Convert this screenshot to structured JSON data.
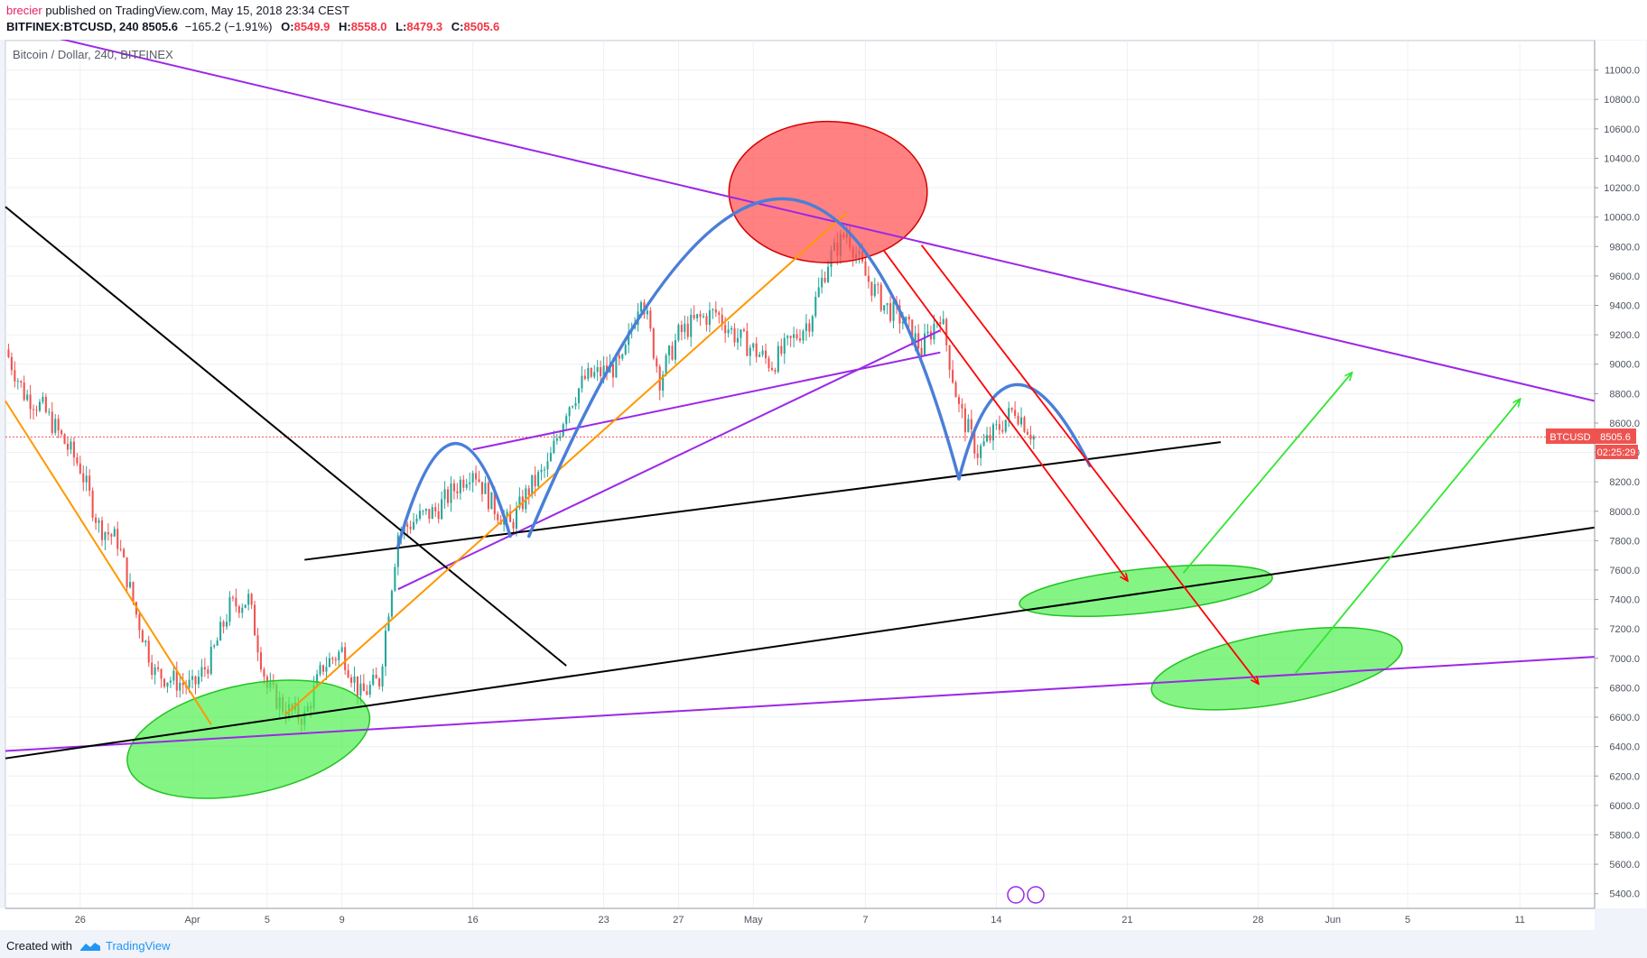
{
  "header": {
    "author": "brecier",
    "published": "published on TradingView.com, May 15, 2018 23:34 CEST",
    "symbol": "BITFINEX:BTCUSD, 240",
    "price": "8505.6",
    "change": "−165.2 (−1.91%)",
    "o_label": "O:",
    "o": "8549.9",
    "h_label": "H:",
    "h": "8558.0",
    "l_label": "L:",
    "l": "8479.3",
    "c_label": "C:",
    "c": "8505.6"
  },
  "footer": {
    "created_with": "Created with",
    "brand": "TradingView"
  },
  "colors": {
    "up": "#26a69a",
    "down": "#ef5350",
    "purple": "#9c27e8",
    "black": "#000000",
    "orange": "#ff9800",
    "blue": "#4a7fd8",
    "red": "#ff0000",
    "green": "#32e632",
    "price_tag": "#ef5350",
    "countdown_tag": "#ef5350"
  },
  "chart_data": {
    "type": "candlestick",
    "title": "Bitcoin / Dollar, 240, BITFINEX",
    "symbol": "BTCUSD",
    "interval": "240",
    "exchange": "BITFINEX",
    "last_price": "8505.6",
    "countdown": "02:25:29",
    "y_range": [
      5300,
      11200
    ],
    "y_ticks": [
      "5400.0",
      "5600.0",
      "5800.0",
      "6000.0",
      "6200.0",
      "6400.0",
      "6600.0",
      "6800.0",
      "7000.0",
      "7200.0",
      "7400.0",
      "7600.0",
      "7800.0",
      "8000.0",
      "8200.0",
      "8400.0",
      "8600.0",
      "8800.0",
      "9000.0",
      "9200.0",
      "9400.0",
      "9600.0",
      "9800.0",
      "10000.0",
      "10200.0",
      "10400.0",
      "10600.0",
      "10800.0",
      "11000.0"
    ],
    "x_range": [
      "2018-03-22",
      "2018-06-15"
    ],
    "x_ticks": [
      {
        "label": "26",
        "date": "2018-03-26"
      },
      {
        "label": "Apr",
        "date": "2018-04-01"
      },
      {
        "label": "5",
        "date": "2018-04-05"
      },
      {
        "label": "9",
        "date": "2018-04-09"
      },
      {
        "label": "16",
        "date": "2018-04-16"
      },
      {
        "label": "23",
        "date": "2018-04-23"
      },
      {
        "label": "27",
        "date": "2018-04-27"
      },
      {
        "label": "May",
        "date": "2018-05-01"
      },
      {
        "label": "7",
        "date": "2018-05-07"
      },
      {
        "label": "14",
        "date": "2018-05-14"
      },
      {
        "label": "21",
        "date": "2018-05-21"
      },
      {
        "label": "28",
        "date": "2018-05-28"
      },
      {
        "label": "Jun",
        "date": "2018-06-01"
      },
      {
        "label": "5",
        "date": "2018-06-05"
      },
      {
        "label": "11",
        "date": "2018-06-11"
      }
    ],
    "price_path": [
      {
        "date": "2018-03-22",
        "close": 9100
      },
      {
        "date": "2018-03-23",
        "close": 8800
      },
      {
        "date": "2018-03-24",
        "close": 8700
      },
      {
        "date": "2018-03-25",
        "close": 8500
      },
      {
        "date": "2018-03-26",
        "close": 8300
      },
      {
        "date": "2018-03-27",
        "close": 7900
      },
      {
        "date": "2018-03-28",
        "close": 7800
      },
      {
        "date": "2018-03-29",
        "close": 7300
      },
      {
        "date": "2018-03-30",
        "close": 6900
      },
      {
        "date": "2018-03-31",
        "close": 6850
      },
      {
        "date": "2018-04-01",
        "close": 6800
      },
      {
        "date": "2018-04-02",
        "close": 7000
      },
      {
        "date": "2018-04-03",
        "close": 7350
      },
      {
        "date": "2018-04-04",
        "close": 7400
      },
      {
        "date": "2018-04-05",
        "close": 6800
      },
      {
        "date": "2018-04-06",
        "close": 6650
      },
      {
        "date": "2018-04-07",
        "close": 6600
      },
      {
        "date": "2018-04-08",
        "close": 6950
      },
      {
        "date": "2018-04-09",
        "close": 7050
      },
      {
        "date": "2018-04-10",
        "close": 6750
      },
      {
        "date": "2018-04-11",
        "close": 6850
      },
      {
        "date": "2018-04-12",
        "close": 7850
      },
      {
        "date": "2018-04-13",
        "close": 7950
      },
      {
        "date": "2018-04-14",
        "close": 8000
      },
      {
        "date": "2018-04-15",
        "close": 8150
      },
      {
        "date": "2018-04-16",
        "close": 8300
      },
      {
        "date": "2018-04-17",
        "close": 8050
      },
      {
        "date": "2018-04-18",
        "close": 7900
      },
      {
        "date": "2018-04-19",
        "close": 8150
      },
      {
        "date": "2018-04-20",
        "close": 8300
      },
      {
        "date": "2018-04-21",
        "close": 8700
      },
      {
        "date": "2018-04-22",
        "close": 8900
      },
      {
        "date": "2018-04-23",
        "close": 8950
      },
      {
        "date": "2018-04-24",
        "close": 9000
      },
      {
        "date": "2018-04-25",
        "close": 9500
      },
      {
        "date": "2018-04-26",
        "close": 8900
      },
      {
        "date": "2018-04-27",
        "close": 9200
      },
      {
        "date": "2018-04-28",
        "close": 9300
      },
      {
        "date": "2018-04-29",
        "close": 9350
      },
      {
        "date": "2018-04-30",
        "close": 9200
      },
      {
        "date": "2018-05-01",
        "close": 9100
      },
      {
        "date": "2018-05-02",
        "close": 9000
      },
      {
        "date": "2018-05-03",
        "close": 9150
      },
      {
        "date": "2018-05-04",
        "close": 9300
      },
      {
        "date": "2018-05-05",
        "close": 9700
      },
      {
        "date": "2018-05-06",
        "close": 9900
      },
      {
        "date": "2018-05-07",
        "close": 9600
      },
      {
        "date": "2018-05-08",
        "close": 9400
      },
      {
        "date": "2018-05-09",
        "close": 9300
      },
      {
        "date": "2018-05-10",
        "close": 9100
      },
      {
        "date": "2018-05-11",
        "close": 9350
      },
      {
        "date": "2018-05-12",
        "close": 8700
      },
      {
        "date": "2018-05-13",
        "close": 8400
      },
      {
        "date": "2018-05-14",
        "close": 8550
      },
      {
        "date": "2018-05-15",
        "close": 8700
      },
      {
        "date": "2018-05-16",
        "close": 8505.6
      }
    ],
    "drawings": {
      "lines": [
        {
          "name": "purple-long-downtrend",
          "color": "purple",
          "from": {
            "date": "2018-03-22",
            "price": 11300
          },
          "to": {
            "date": "2018-06-15",
            "price": 8750
          }
        },
        {
          "name": "purple-lower-uptrend",
          "color": "purple",
          "from": {
            "date": "2018-03-22",
            "price": 6370
          },
          "to": {
            "date": "2018-06-15",
            "price": 7010
          }
        },
        {
          "name": "purple-channel-upper",
          "color": "purple",
          "from": {
            "date": "2018-04-16",
            "price": 8420
          },
          "to": {
            "date": "2018-05-11",
            "price": 9080
          }
        },
        {
          "name": "purple-channel-lower",
          "color": "purple",
          "from": {
            "date": "2018-04-12",
            "price": 7470
          },
          "to": {
            "date": "2018-05-11",
            "price": 9230
          }
        },
        {
          "name": "black-steep-downtrend",
          "color": "black",
          "from": {
            "date": "2018-03-22",
            "price": 10070
          },
          "to": {
            "date": "2018-04-21",
            "price": 6950
          }
        },
        {
          "name": "black-long-uptrend",
          "color": "black",
          "from": {
            "date": "2018-03-22",
            "price": 6320
          },
          "to": {
            "date": "2018-06-15",
            "price": 7890
          }
        },
        {
          "name": "black-neckline",
          "color": "black",
          "from": {
            "date": "2018-04-07",
            "price": 7670
          },
          "to": {
            "date": "2018-05-26",
            "price": 8470
          }
        },
        {
          "name": "orange-decline-channel",
          "color": "orange",
          "from": {
            "date": "2018-03-22",
            "price": 8750
          },
          "to": {
            "date": "2018-04-02",
            "price": 6550
          }
        },
        {
          "name": "orange-rally-line",
          "color": "orange",
          "from": {
            "date": "2018-04-06",
            "price": 6620
          },
          "to": {
            "date": "2018-05-06",
            "price": 10030
          }
        }
      ],
      "arrows": [
        {
          "name": "red-arrow-short",
          "color": "red",
          "from": {
            "date": "2018-05-08",
            "price": 9770
          },
          "to": {
            "date": "2018-05-21",
            "price": 7530
          }
        },
        {
          "name": "red-arrow-long",
          "color": "red",
          "from": {
            "date": "2018-05-10",
            "price": 9810
          },
          "to": {
            "date": "2018-05-28",
            "price": 6830
          }
        },
        {
          "name": "green-arrow-upper",
          "color": "green",
          "from": {
            "date": "2018-05-24",
            "price": 7580
          },
          "to": {
            "date": "2018-06-02",
            "price": 8940
          }
        },
        {
          "name": "green-arrow-lower",
          "color": "green",
          "from": {
            "date": "2018-05-30",
            "price": 6900
          },
          "to": {
            "date": "2018-06-11",
            "price": 8760
          }
        }
      ],
      "ellipses": [
        {
          "name": "red-top-ellipse",
          "color": "red",
          "center": {
            "date": "2018-05-05",
            "price": 10170
          },
          "radius_days": 5.3,
          "radius_price": 480
        },
        {
          "name": "green-ellipse-low",
          "color": "green",
          "center": {
            "date": "2018-04-04",
            "price": 6450
          },
          "radius_days": 6.6,
          "radius_price": 370,
          "rotate_deg": -12
        },
        {
          "name": "green-ellipse-mid",
          "color": "green",
          "center": {
            "date": "2018-05-22",
            "price": 7460
          },
          "radius_days": 6.8,
          "radius_price": 150,
          "rotate_deg": -6
        },
        {
          "name": "green-ellipse-right",
          "color": "green",
          "center": {
            "date": "2018-05-29",
            "price": 6930
          },
          "radius_days": 6.8,
          "radius_price": 240,
          "rotate_deg": -10
        }
      ],
      "arcs": [
        {
          "name": "blue-arc-small",
          "color": "blue",
          "from": {
            "date": "2018-04-12",
            "price": 7760
          },
          "peak": {
            "date": "2018-04-15",
            "price": 8460
          },
          "to": {
            "date": "2018-04-18",
            "price": 7830
          }
        },
        {
          "name": "blue-arc-large",
          "color": "blue",
          "from": {
            "date": "2018-04-19",
            "price": 7830
          },
          "peak": {
            "date": "2018-05-02",
            "price": 10120
          },
          "to": {
            "date": "2018-05-12",
            "price": 8220
          }
        },
        {
          "name": "blue-arc-right",
          "color": "blue",
          "from": {
            "date": "2018-05-12",
            "price": 8220
          },
          "peak": {
            "date": "2018-05-15",
            "price": 8860
          },
          "to": {
            "date": "2018-05-19",
            "price": 8310
          }
        }
      ]
    }
  }
}
